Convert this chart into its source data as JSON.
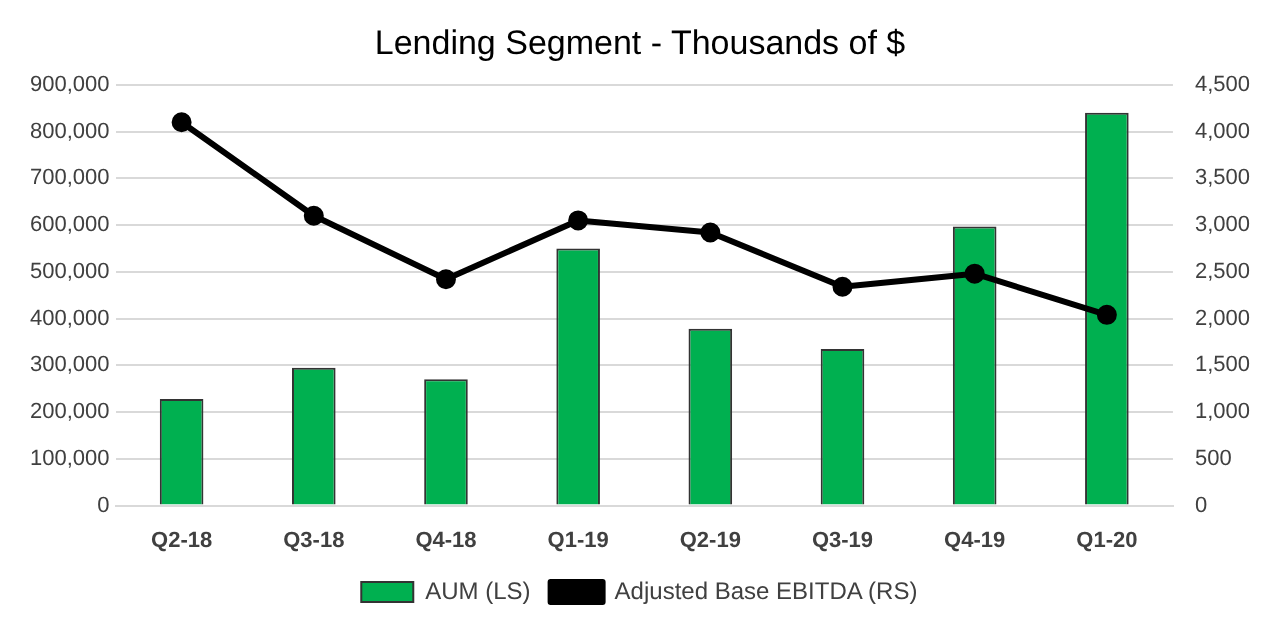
{
  "chart_data": {
    "type": "bar",
    "title": "Lending Segment - Thousands of $",
    "categories": [
      "Q2-18",
      "Q3-18",
      "Q4-18",
      "Q1-19",
      "Q2-19",
      "Q3-19",
      "Q4-19",
      "Q1-20"
    ],
    "series": [
      {
        "name": "AUM (LS)",
        "color": "#00b050",
        "values": [
          228000,
          295000,
          270000,
          550000,
          378000,
          335000,
          597000,
          840000
        ]
      },
      {
        "name": "Adjusted Base EBITDA (RS)",
        "type": "line",
        "axis": "y2",
        "color": "#000000",
        "values": [
          4100,
          3100,
          2420,
          3050,
          2920,
          2340,
          2480,
          2040
        ]
      }
    ],
    "ylim": [
      0,
      900000
    ],
    "yticks": [
      0,
      {
        "value": 100000,
        "label": "100,000"
      },
      {
        "value": 200000,
        "label": "200,000"
      },
      {
        "value": 300000,
        "label": "300,000"
      },
      {
        "value": 400000,
        "label": "400,000"
      },
      {
        "value": 500000,
        "label": "500,000"
      },
      {
        "value": 600000,
        "label": "600,000"
      },
      {
        "value": 700000,
        "label": "700,000"
      },
      {
        "value": 800000,
        "label": "800,000"
      },
      {
        "value": 900000,
        "label": "900,000"
      }
    ],
    "y2lim": [
      0,
      4500
    ],
    "y2ticks": [
      0,
      500,
      {
        "value": 1000,
        "label": "1,000"
      },
      {
        "value": 1500,
        "label": "1,500"
      },
      {
        "value": 2000,
        "label": "2,000"
      },
      {
        "value": 2500,
        "label": "2,500"
      },
      {
        "value": 3000,
        "label": "3,000"
      },
      {
        "value": 3500,
        "label": "3,500"
      },
      {
        "value": 4000,
        "label": "4,000"
      },
      {
        "value": 4500,
        "label": "4,500"
      }
    ],
    "grid": "y",
    "legend": "bottom",
    "marker": "circle"
  }
}
